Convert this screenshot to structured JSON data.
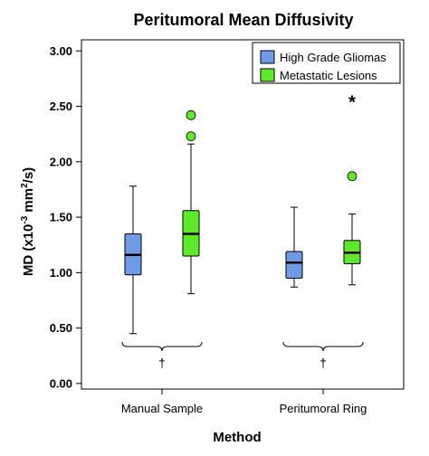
{
  "chart_data": {
    "type": "box",
    "title": "Peritumoral Mean Diffusivity",
    "xlabel": "Method",
    "ylabel_prefix": "MD (x10",
    "ylabel_sup1": "-3",
    "ylabel_mid": " mm",
    "ylabel_sup2": "2",
    "ylabel_suffix": "/s)",
    "ylim": [
      -0.05,
      3.1
    ],
    "yticks": [
      0.0,
      0.5,
      1.0,
      1.5,
      2.0,
      2.5,
      3.0
    ],
    "ytick_labels": [
      "0.00",
      "0.50",
      "1.00",
      "1.50",
      "2.00",
      "2.50",
      "3.00"
    ],
    "categories": [
      "Manual Sample",
      "Peritumoral Ring"
    ],
    "legend_position": "top-right",
    "series": [
      {
        "name": "High Grade Gliomas",
        "color": "#6f9be6",
        "boxes": [
          {
            "min": 0.45,
            "q1": 0.98,
            "median": 1.16,
            "q3": 1.35,
            "max": 1.78,
            "outliers": [],
            "extremes": []
          },
          {
            "min": 0.87,
            "q1": 0.95,
            "median": 1.09,
            "q3": 1.19,
            "max": 1.59,
            "outliers": [],
            "extremes": []
          }
        ]
      },
      {
        "name": "Metastatic Lesions",
        "color": "#5ee82a",
        "boxes": [
          {
            "min": 0.81,
            "q1": 1.15,
            "median": 1.35,
            "q3": 1.56,
            "max": 2.16,
            "outliers": [
              2.23,
              2.42
            ],
            "extremes": []
          },
          {
            "min": 0.89,
            "q1": 1.08,
            "median": 1.18,
            "q3": 1.29,
            "max": 1.53,
            "outliers": [
              1.87
            ],
            "extremes": [
              2.55
            ]
          }
        ]
      }
    ],
    "group_annotations": [
      {
        "category": "Manual Sample",
        "symbol": "†"
      },
      {
        "category": "Peritumoral Ring",
        "symbol": "†"
      }
    ]
  }
}
